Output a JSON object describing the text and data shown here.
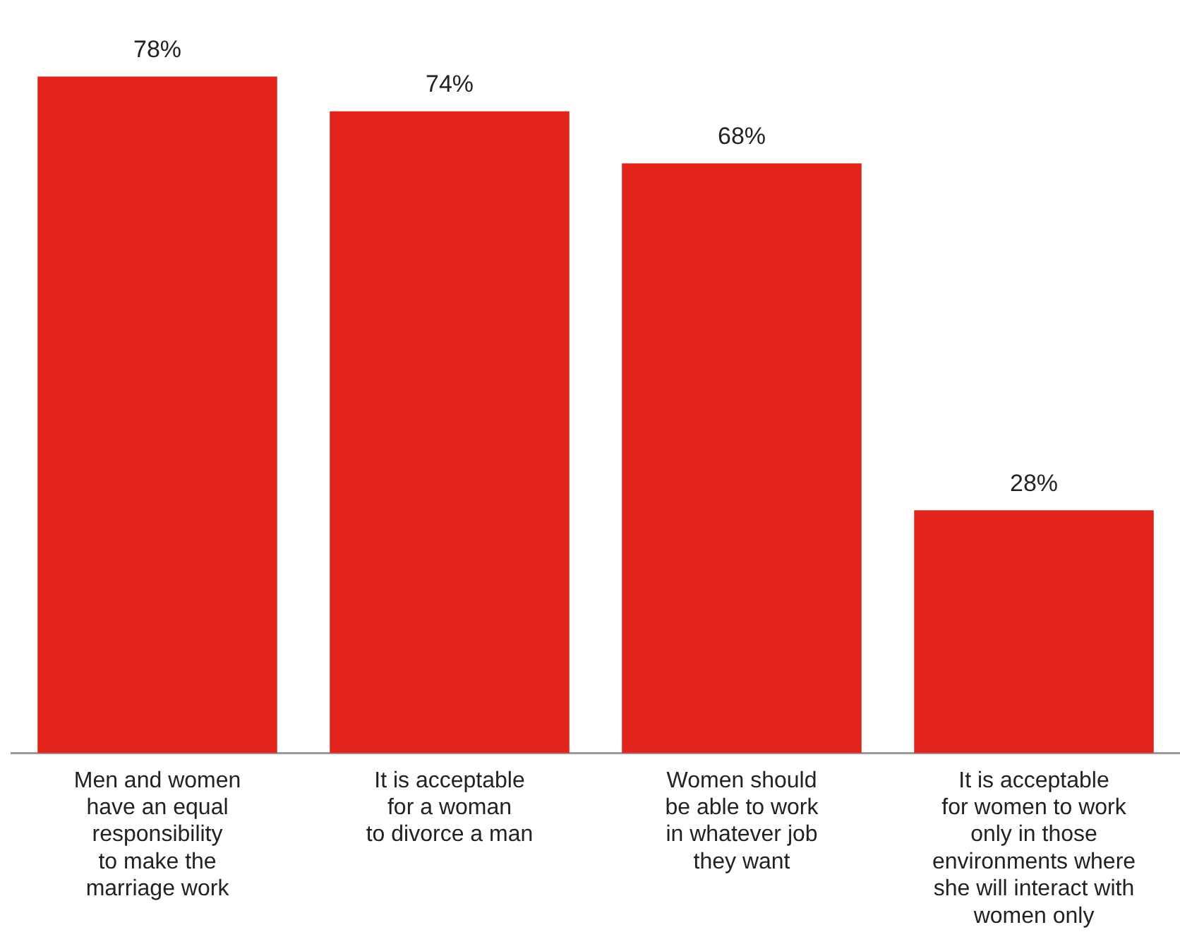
{
  "chart_data": {
    "type": "bar",
    "categories": [
      "Men and women\nhave an equal\nresponsibility\nto make the\nmarriage work",
      "It is acceptable\nfor a woman\nto divorce a man",
      "Women should\nbe able to work\nin whatever job\nthey want",
      "It is acceptable\nfor women to work\nonly in those\nenvironments where\nshe will interact with\nwomen only"
    ],
    "values": [
      78,
      74,
      68,
      28
    ],
    "value_labels": [
      "78%",
      "74%",
      "68%",
      "28%"
    ],
    "color": "#e2241c",
    "grid": false,
    "legend": false
  }
}
